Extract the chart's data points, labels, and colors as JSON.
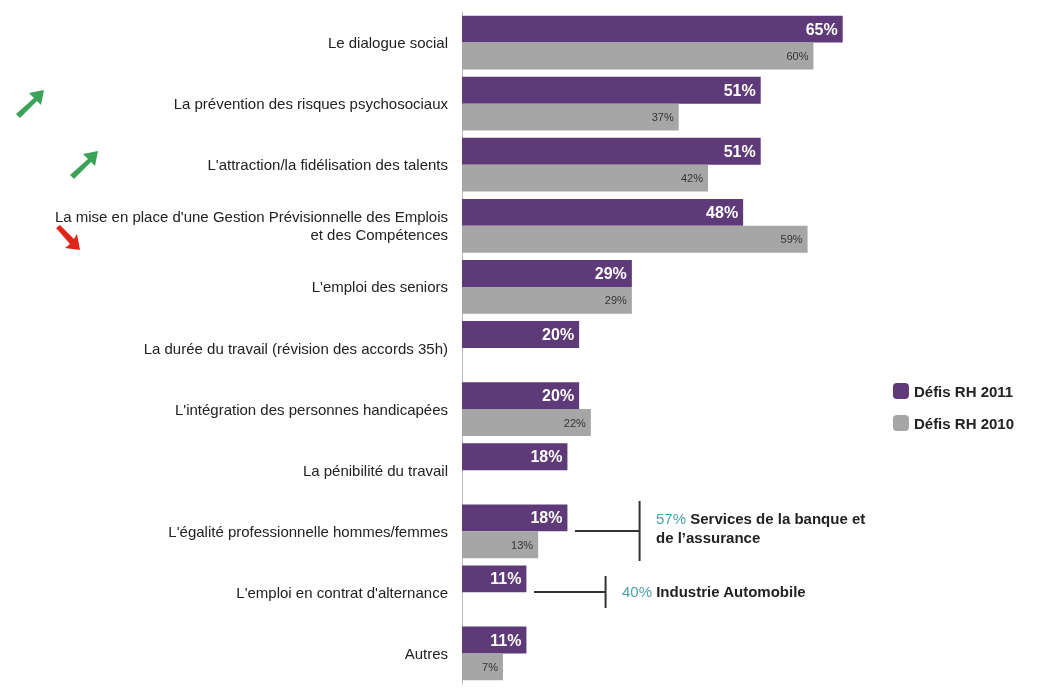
{
  "chart_data": {
    "type": "bar",
    "orientation": "horizontal",
    "categories": [
      "Le dialogue social",
      "La prévention des risques psychosociaux",
      "L'attraction/la fidélisation des talents",
      "La mise en place d'une Gestion Prévisionnelle des Emplois et des Compétences",
      "L'emploi des seniors",
      "La durée du travail (révision des accords 35h)",
      "L'intégration des personnes handicapées",
      "La pénibilité du travail",
      "L'égalité professionnelle hommes/femmes",
      "L'emploi en contrat d'alternance",
      "Autres"
    ],
    "series": [
      {
        "name": "Défis RH 2011",
        "color": "#5f3a78",
        "values": [
          65,
          51,
          51,
          48,
          29,
          20,
          20,
          18,
          18,
          11,
          11
        ],
        "value_labels": [
          "65%",
          "51%",
          "51%",
          "48%",
          "29%",
          "20%",
          "20%",
          "18%",
          "18%",
          "11%",
          "11%"
        ]
      },
      {
        "name": "Défis RH 2010",
        "color": "#a6a6a6",
        "values": [
          60,
          37,
          42,
          59,
          29,
          null,
          22,
          null,
          13,
          null,
          7
        ],
        "value_labels": [
          "60%",
          "37%",
          "42%",
          "59%",
          "29%",
          null,
          "22%",
          null,
          "13%",
          null,
          "7%"
        ]
      }
    ],
    "tick_labels": "y",
    "legend": "right",
    "annotations": [
      "57% Services de la banque et de l’assurance",
      "40% Industrie Automobile"
    ]
  }
}
